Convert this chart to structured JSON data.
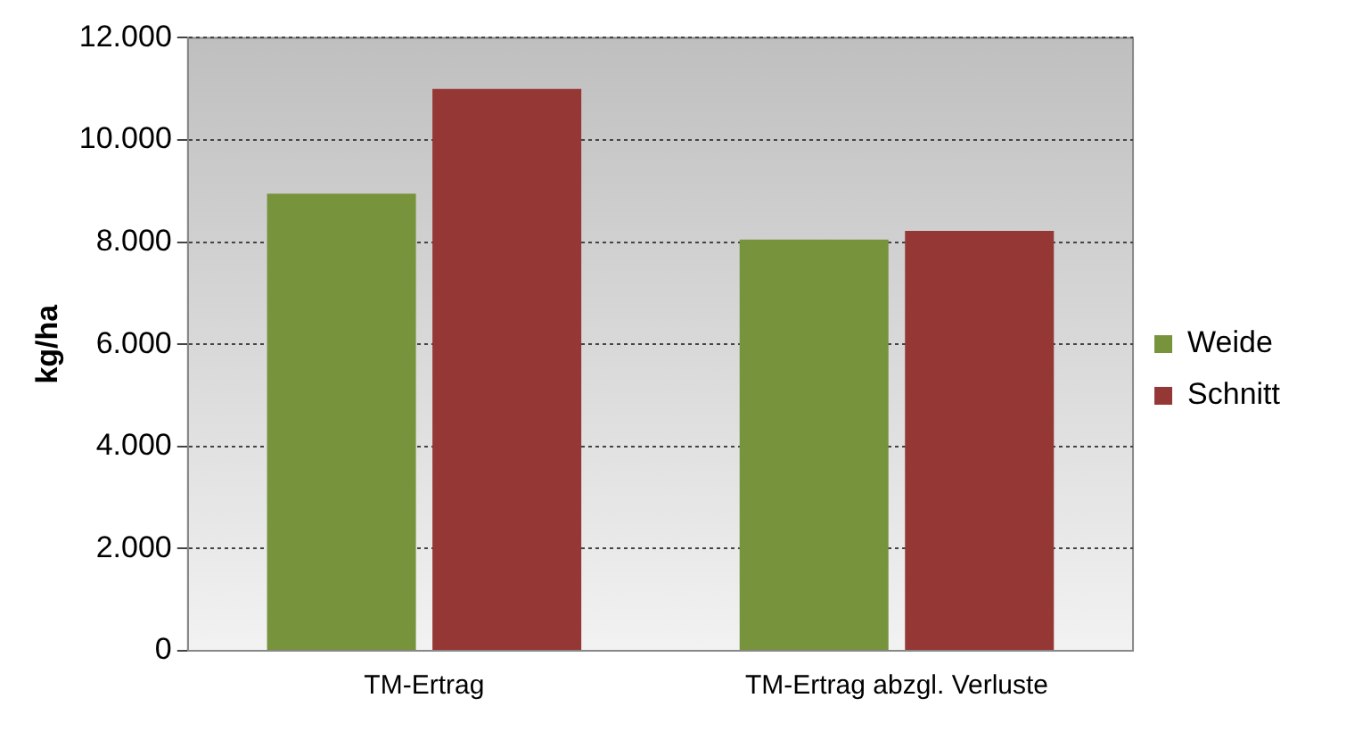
{
  "chart_data": {
    "type": "bar",
    "ylabel": "kg/ha",
    "categories": [
      "TM-Ertrag",
      "TM-Ertrag abzgl. Verluste"
    ],
    "series": [
      {
        "name": "Weide",
        "color": "#77933c",
        "values": [
          8950,
          8050
        ]
      },
      {
        "name": "Schnitt",
        "color": "#953735",
        "values": [
          11000,
          8220
        ]
      }
    ],
    "ylim": [
      0,
      12000
    ],
    "yticks": [
      0,
      {
        "value": 2000,
        "label": "2.000"
      },
      {
        "value": 4000,
        "label": "4.000"
      },
      {
        "value": 6000,
        "label": "6.000"
      },
      {
        "value": 8000,
        "label": "8.000"
      },
      {
        "value": 10000,
        "label": "10.000"
      },
      {
        "value": 12000,
        "label": "12.000"
      }
    ],
    "grid": "y",
    "legend": "right"
  }
}
